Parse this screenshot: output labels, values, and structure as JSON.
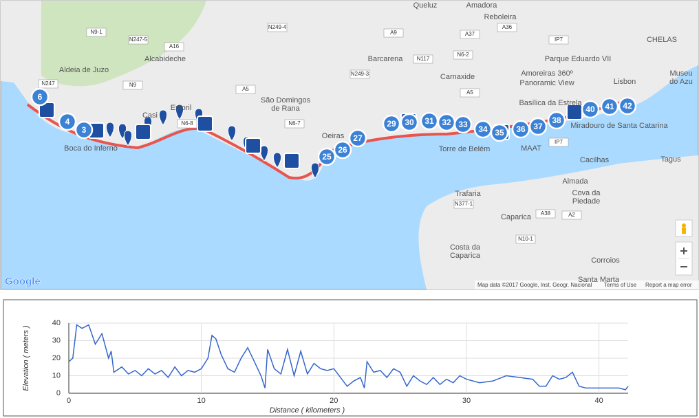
{
  "map": {
    "logo": "Google",
    "attribution": "Map data ©2017 Google, Inst. Geogr. Nacional",
    "terms": "Terms of Use",
    "report": "Report a map error",
    "places": [
      "Queluz",
      "Amadora",
      "Reboleira",
      "Parque Eduardo VII",
      "Amoreiras 360º",
      "Panoramic View",
      "Lisbon",
      "Barcarena",
      "Carnaxide",
      "Alcabideche",
      "Estoril",
      "Aldeia de Juzo",
      "São Domingos",
      "de Rana",
      "Boca do Inferno",
      "Torre de Belém",
      "MAAT",
      "Basílica da Estrela",
      "Miradouro de Santa Catarina",
      "Almada",
      "Cova da",
      "Piedade",
      "Cacilhas",
      "Trafaria",
      "Caparica",
      "Costa da",
      "Caparica",
      "Corroios",
      "Oeiras",
      "Museu",
      "do Azu",
      "Tagus",
      "Casi",
      "Santa Marta",
      "CHELAS"
    ],
    "roads": [
      "A5",
      "A16",
      "A9",
      "A37",
      "A36",
      "IP7",
      "A38",
      "A2",
      "N117",
      "N6-7",
      "N247-5",
      "N249-3",
      "N377-1",
      "N9-1",
      "N247",
      "N9",
      "N6-8",
      "N10-1",
      "N6-2",
      "N249-4",
      "A5",
      "IP7"
    ],
    "markers": [
      6,
      4,
      3,
      25,
      26,
      27,
      29,
      30,
      31,
      32,
      33,
      34,
      35,
      36,
      37,
      38,
      40,
      41,
      42
    ]
  },
  "chart_data": {
    "type": "line",
    "ylabel": "Elevation ( meters )",
    "xlabel": "Distance ( kilometers )",
    "xlim": [
      0,
      42.2
    ],
    "ylim": [
      0,
      40
    ],
    "xticks": [
      0,
      10,
      20,
      30,
      40
    ],
    "yticks": [
      0,
      10,
      20,
      30,
      40
    ],
    "grid": true,
    "x": [
      0,
      0.3,
      0.6,
      1.0,
      1.5,
      2.0,
      2.5,
      3.0,
      3.2,
      3.4,
      4,
      4.5,
      5,
      5.5,
      6,
      6.5,
      7,
      7.5,
      8,
      8.5,
      9,
      9.5,
      10,
      10.5,
      10.8,
      11.1,
      11.5,
      12,
      12.5,
      13,
      13.5,
      14,
      14.5,
      14.8,
      15,
      15.5,
      16,
      16.5,
      17,
      17.5,
      18,
      18.5,
      19,
      19.5,
      20,
      20.5,
      21,
      21.5,
      22,
      22.3,
      22.5,
      23,
      23.5,
      24,
      24.5,
      25,
      25.5,
      26,
      26.5,
      27,
      27.5,
      28,
      28.5,
      29,
      29.5,
      30,
      31,
      32,
      33,
      34,
      35,
      35.5,
      36,
      36.5,
      37,
      37.5,
      38,
      38.5,
      39,
      40,
      41,
      41.5,
      42,
      42.2
    ],
    "series": [
      {
        "name": "Elevation",
        "color": "#3366cc",
        "values": [
          18,
          20,
          39,
          37,
          39,
          28,
          34,
          20,
          24,
          12,
          15,
          11,
          13,
          10,
          14,
          11,
          13,
          9,
          15,
          10,
          13,
          12,
          14,
          20,
          33,
          31,
          22,
          14,
          12,
          20,
          26,
          18,
          10,
          3,
          25,
          14,
          11,
          25,
          10,
          24,
          11,
          17,
          14,
          13,
          14,
          9,
          4,
          7,
          9,
          3,
          18,
          12,
          13,
          9,
          14,
          12,
          4,
          10,
          7,
          5,
          9,
          5,
          8,
          6,
          10,
          8,
          6,
          7,
          10,
          9,
          8,
          4,
          4,
          10,
          8,
          9,
          12,
          4,
          3,
          3,
          3,
          3,
          2,
          4
        ]
      }
    ]
  }
}
